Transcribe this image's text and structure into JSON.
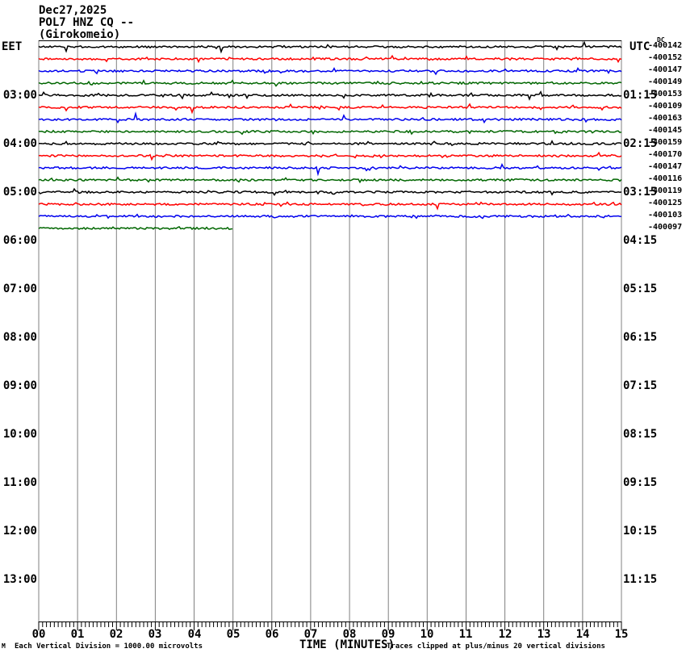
{
  "header": {
    "date": "Dec27,2025",
    "station": "POL7 HNZ CQ --",
    "location": "(Girokomeio)"
  },
  "left_axis": {
    "label": "EET",
    "hours": [
      "03:00",
      "04:00",
      "05:00",
      "06:00",
      "07:00",
      "08:00",
      "09:00",
      "10:00",
      "11:00",
      "12:00",
      "13:00"
    ]
  },
  "right_axis": {
    "label": "UTC",
    "dc_label": "DC",
    "hours": [
      "01:15",
      "02:15",
      "03:15",
      "04:15",
      "05:15",
      "06:15",
      "07:15",
      "08:15",
      "09:15",
      "10:15",
      "11:15"
    ]
  },
  "x_axis": {
    "title": "TIME (MINUTES)",
    "tick_labels": [
      "00",
      "01",
      "02",
      "03",
      "04",
      "05",
      "06",
      "07",
      "08",
      "09",
      "10",
      "11",
      "12",
      "13",
      "14",
      "15"
    ]
  },
  "footer": {
    "corner_mark": "M",
    "left_note": "Each Vertical Division = 1000.00 microvolts",
    "right_note": "Traces clipped at plus/minus 20 vertical divisions"
  },
  "chart_data": {
    "type": "line",
    "title": "POL7 HNZ CQ -- (Girokomeio) Dec27,2025 helicorder",
    "xlabel": "TIME (MINUTES)",
    "x_range_minutes": [
      0,
      15
    ],
    "row_duration_minutes": 15,
    "rows_per_hour": 4,
    "grid": true,
    "grid_color": "#808080",
    "frame_color": "#000000",
    "colors_cycle": [
      "#000000",
      "#ff0000",
      "#0000ee",
      "#006600"
    ],
    "rows": [
      {
        "dc": -400142,
        "color": "#000000",
        "data_minutes": 15
      },
      {
        "dc": -400152,
        "color": "#ff0000",
        "data_minutes": 15
      },
      {
        "dc": -400147,
        "color": "#0000ee",
        "data_minutes": 15
      },
      {
        "dc": -400149,
        "color": "#006600",
        "data_minutes": 15
      },
      {
        "dc": -400153,
        "color": "#000000",
        "data_minutes": 15
      },
      {
        "dc": -400109,
        "color": "#ff0000",
        "data_minutes": 15
      },
      {
        "dc": -400163,
        "color": "#0000ee",
        "data_minutes": 15
      },
      {
        "dc": -400145,
        "color": "#006600",
        "data_minutes": 15
      },
      {
        "dc": -400159,
        "color": "#000000",
        "data_minutes": 15
      },
      {
        "dc": -400170,
        "color": "#ff0000",
        "data_minutes": 15
      },
      {
        "dc": -400147,
        "color": "#0000ee",
        "data_minutes": 15
      },
      {
        "dc": -400116,
        "color": "#006600",
        "data_minutes": 15
      },
      {
        "dc": -400119,
        "color": "#000000",
        "data_minutes": 15
      },
      {
        "dc": -400125,
        "color": "#ff0000",
        "data_minutes": 15
      },
      {
        "dc": -400103,
        "color": "#0000ee",
        "data_minutes": 15
      },
      {
        "dc": -400097,
        "color": "#006600",
        "data_minutes": 5
      }
    ]
  }
}
